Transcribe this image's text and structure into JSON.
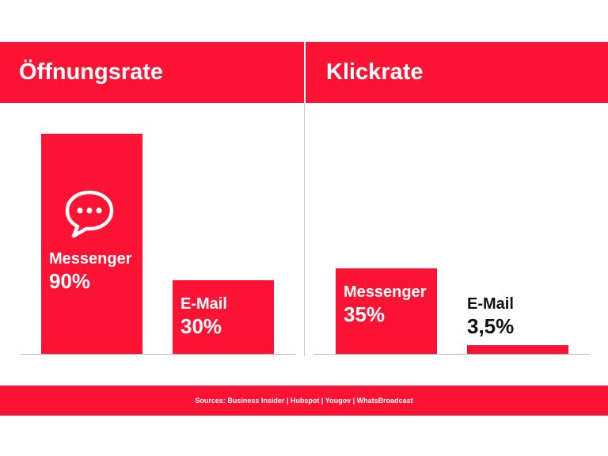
{
  "colors": {
    "accent": "#ff1334",
    "background": "#ffffff",
    "label_dark": "#111111"
  },
  "icon": "speech-bubble-icon",
  "chart_data": [
    {
      "type": "bar",
      "title": "Öffnungsrate",
      "categories": [
        "Messenger",
        "E-Mail"
      ],
      "values": [
        90,
        30
      ],
      "value_labels": [
        "90%",
        "30%"
      ],
      "unit": "%",
      "ylim": [
        0,
        100
      ],
      "grid": false
    },
    {
      "type": "bar",
      "title": "Klickrate",
      "categories": [
        "Messenger",
        "E-Mail"
      ],
      "values": [
        35,
        3.5
      ],
      "value_labels": [
        "35%",
        "3,5%"
      ],
      "unit": "%",
      "ylim": [
        0,
        100
      ],
      "grid": false
    }
  ],
  "footer": {
    "sources": "Sources: Business Insider | Hubspot | Yougov | WhatsBroadcast"
  }
}
